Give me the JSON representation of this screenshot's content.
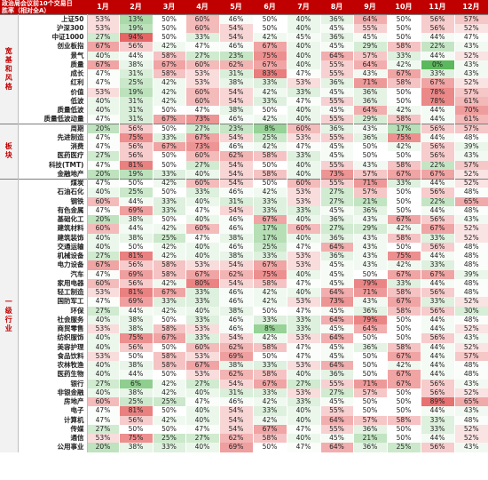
{
  "header": {
    "corner_line1": "政治局会议前10个交易日",
    "corner_line2": "胜率（相对全A）"
  },
  "chart_data": {
    "type": "heatmap",
    "columns": [
      "1月",
      "2月",
      "3月",
      "4月",
      "5月",
      "6月",
      "7月",
      "8月",
      "9月",
      "10月",
      "11月",
      "12月"
    ],
    "groups": [
      {
        "name": "宽基和风格",
        "rows": [
          {
            "label": "上证50",
            "values": [
              53,
              13,
              50,
              60,
              46,
              50,
              40,
              36,
              64,
              50,
              56,
              57
            ]
          },
          {
            "label": "沪深300",
            "values": [
              53,
              19,
              50,
              60,
              54,
              50,
              40,
              45,
              55,
              50,
              56,
              52
            ]
          },
          {
            "label": "中证1000",
            "values": [
              27,
              94,
              50,
              33,
              54,
              42,
              45,
              36,
              45,
              50,
              44,
              47
            ]
          },
          {
            "label": "创业板指",
            "values": [
              67,
              56,
              42,
              47,
              46,
              67,
              40,
              45,
              29,
              58,
              22,
              43
            ]
          },
          {
            "label": "景气",
            "values": [
              40,
              44,
              58,
              27,
              23,
              75,
              40,
              64,
              57,
              33,
              44,
              52
            ]
          },
          {
            "label": "质量",
            "values": [
              67,
              38,
              67,
              60,
              62,
              67,
              40,
              55,
              64,
              42,
              0,
              43
            ]
          },
          {
            "label": "成长",
            "values": [
              47,
              31,
              58,
              53,
              31,
              83,
              47,
              55,
              43,
              67,
              33,
              43
            ]
          },
          {
            "label": "红利",
            "values": [
              47,
              25,
              42,
              53,
              38,
              33,
              53,
              36,
              71,
              58,
              67,
              52
            ]
          },
          {
            "label": "价值",
            "values": [
              53,
              19,
              42,
              60,
              54,
              42,
              33,
              45,
              36,
              50,
              78,
              57
            ]
          },
          {
            "label": "低波",
            "values": [
              40,
              31,
              42,
              60,
              54,
              33,
              47,
              55,
              36,
              50,
              78,
              61
            ]
          },
          {
            "label": "质量低波",
            "values": [
              40,
              31,
              50,
              47,
              38,
              50,
              40,
              45,
              64,
              42,
              44,
              70
            ]
          },
          {
            "label": "质量低波动量",
            "values": [
              47,
              31,
              67,
              73,
              46,
              42,
              40,
              55,
              29,
              58,
              44,
              61
            ]
          }
        ]
      },
      {
        "name": "板块",
        "rows": [
          {
            "label": "周期",
            "values": [
              20,
              56,
              50,
              27,
              23,
              8,
              60,
              36,
              43,
              17,
              56,
              57
            ]
          },
          {
            "label": "先进制造",
            "values": [
              47,
              75,
              33,
              67,
              54,
              25,
              53,
              55,
              36,
              75,
              44,
              48
            ]
          },
          {
            "label": "消费",
            "values": [
              47,
              56,
              67,
              73,
              46,
              42,
              47,
              45,
              50,
              42,
              56,
              39
            ]
          },
          {
            "label": "医药医疗",
            "values": [
              27,
              56,
              50,
              60,
              62,
              58,
              33,
              45,
              50,
              50,
              56,
              43
            ]
          },
          {
            "label": "科技(TMT)",
            "values": [
              47,
              81,
              50,
              27,
              54,
              50,
              40,
              55,
              43,
              58,
              22,
              57
            ]
          },
          {
            "label": "金融地产",
            "values": [
              20,
              19,
              33,
              40,
              54,
              58,
              40,
              73,
              57,
              67,
              67,
              52
            ]
          }
        ]
      },
      {
        "name": "一级行业",
        "rows": [
          {
            "label": "煤炭",
            "values": [
              47,
              50,
              42,
              60,
              54,
              50,
              60,
              55,
              71,
              33,
              44,
              52
            ]
          },
          {
            "label": "石油石化",
            "values": [
              40,
              25,
              50,
              33,
              46,
              42,
              53,
              27,
              57,
              50,
              56,
              48
            ]
          },
          {
            "label": "钢铁",
            "values": [
              60,
              44,
              33,
              40,
              31,
              33,
              53,
              27,
              21,
              50,
              22,
              65
            ]
          },
          {
            "label": "有色金属",
            "values": [
              47,
              69,
              33,
              47,
              54,
              33,
              33,
              45,
              36,
              50,
              44,
              48
            ]
          },
          {
            "label": "基础化工",
            "values": [
              20,
              38,
              50,
              40,
              46,
              67,
              40,
              36,
              43,
              67,
              56,
              43
            ]
          },
          {
            "label": "建筑材料",
            "values": [
              60,
              44,
              42,
              60,
              46,
              17,
              60,
              27,
              29,
              42,
              67,
              52
            ]
          },
          {
            "label": "建筑装饰",
            "values": [
              40,
              38,
              25,
              47,
              38,
              17,
              40,
              36,
              43,
              58,
              33,
              52
            ]
          },
          {
            "label": "交通运输",
            "values": [
              40,
              50,
              42,
              40,
              46,
              25,
              47,
              64,
              43,
              50,
              56,
              48
            ]
          },
          {
            "label": "机械设备",
            "values": [
              27,
              81,
              42,
              40,
              38,
              33,
              53,
              36,
              43,
              75,
              44,
              48
            ]
          },
          {
            "label": "电力设备",
            "values": [
              67,
              56,
              58,
              53,
              54,
              67,
              53,
              45,
              43,
              42,
              33,
              48
            ]
          },
          {
            "label": "汽车",
            "values": [
              47,
              69,
              58,
              67,
              62,
              75,
              40,
              45,
              50,
              67,
              67,
              39
            ]
          },
          {
            "label": "家用电器",
            "values": [
              60,
              56,
              42,
              80,
              54,
              58,
              47,
              45,
              79,
              33,
              44,
              48
            ]
          },
          {
            "label": "轻工制造",
            "values": [
              53,
              81,
              67,
              33,
              46,
              42,
              40,
              64,
              71,
              58,
              56,
              48
            ]
          },
          {
            "label": "国防军工",
            "values": [
              47,
              69,
              33,
              33,
              46,
              42,
              53,
              73,
              43,
              67,
              33,
              52
            ]
          },
          {
            "label": "环保",
            "values": [
              27,
              44,
              42,
              40,
              38,
              50,
              47,
              45,
              36,
              58,
              56,
              30
            ]
          },
          {
            "label": "社会服务",
            "values": [
              40,
              38,
              50,
              33,
              46,
              33,
              33,
              64,
              79,
              50,
              44,
              48
            ]
          },
          {
            "label": "商贸零售",
            "values": [
              53,
              38,
              58,
              53,
              46,
              8,
              33,
              45,
              64,
              50,
              44,
              52
            ]
          },
          {
            "label": "纺织服饰",
            "values": [
              40,
              75,
              67,
              33,
              54,
              42,
              53,
              64,
              50,
              50,
              56,
              43
            ]
          },
          {
            "label": "美容护理",
            "values": [
              40,
              56,
              50,
              60,
              62,
              58,
              47,
              45,
              36,
              58,
              44,
              52
            ]
          },
          {
            "label": "食品饮料",
            "values": [
              53,
              50,
              58,
              53,
              69,
              50,
              47,
              45,
              50,
              67,
              44,
              57
            ]
          },
          {
            "label": "农林牧渔",
            "values": [
              40,
              38,
              58,
              67,
              38,
              33,
              53,
              64,
              50,
              42,
              44,
              48
            ]
          },
          {
            "label": "医药生物",
            "values": [
              40,
              44,
              50,
              53,
              62,
              58,
              40,
              36,
              50,
              67,
              44,
              48
            ]
          },
          {
            "label": "银行",
            "values": [
              27,
              6,
              42,
              27,
              54,
              67,
              27,
              55,
              71,
              67,
              56,
              43
            ]
          },
          {
            "label": "非银金融",
            "values": [
              40,
              38,
              42,
              40,
              31,
              33,
              53,
              27,
              57,
              50,
              56,
              52
            ]
          },
          {
            "label": "房地产",
            "values": [
              60,
              25,
              25,
              47,
              46,
              42,
              33,
              45,
              50,
              50,
              89,
              65
            ]
          },
          {
            "label": "电子",
            "values": [
              47,
              81,
              50,
              40,
              54,
              33,
              40,
              55,
              50,
              50,
              44,
              43
            ]
          },
          {
            "label": "计算机",
            "values": [
              47,
              56,
              42,
              40,
              54,
              42,
              40,
              64,
              57,
              58,
              33,
              48
            ]
          },
          {
            "label": "传媒",
            "values": [
              27,
              50,
              50,
              47,
              54,
              67,
              47,
              55,
              36,
              50,
              33,
              52
            ]
          },
          {
            "label": "通信",
            "values": [
              53,
              75,
              25,
              27,
              62,
              58,
              40,
              45,
              21,
              50,
              44,
              52
            ]
          },
          {
            "label": "公用事业",
            "values": [
              20,
              38,
              33,
              40,
              69,
              50,
              47,
              64,
              36,
              25,
              56,
              43
            ]
          }
        ]
      }
    ],
    "value_format": "percent",
    "color_scale": {
      "low": "#5cb85c",
      "mid": "#ffffff",
      "high": "#e45b5b",
      "min": 0,
      "max": 100,
      "center": 50
    }
  }
}
